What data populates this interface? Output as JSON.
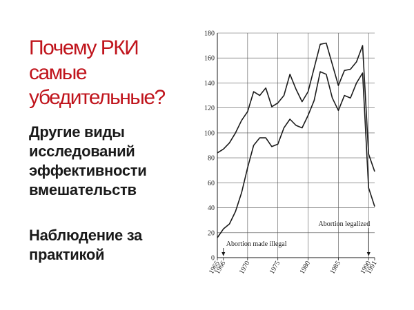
{
  "slide": {
    "title_lines": [
      "Почему РКИ",
      "самые",
      "убедительные?"
    ],
    "subtitle_lines": [
      "Другие виды",
      "исследований",
      "эффективности",
      "вмешательств"
    ],
    "subtitle2_lines": [
      "Наблюдение за",
      "практикой"
    ],
    "colors": {
      "title": "#c0141c",
      "text": "#1a1a1a",
      "line": "#1a1a1a"
    }
  },
  "chart_data": {
    "type": "line",
    "title": "",
    "xlabel": "",
    "ylabel": "",
    "xlim": [
      1965,
      1991
    ],
    "ylim": [
      0,
      180
    ],
    "grid": true,
    "x_tick_labels": [
      "1965",
      "1966",
      "1970",
      "1975",
      "1980",
      "1985",
      "1990",
      "1991"
    ],
    "x_tick_values": [
      1965,
      1966,
      1970,
      1975,
      1980,
      1985,
      1990,
      1991
    ],
    "y_tick_labels": [
      "0",
      "20",
      "40",
      "60",
      "80",
      "100",
      "120",
      "140",
      "160",
      "180"
    ],
    "y_tick_values": [
      0,
      20,
      40,
      60,
      80,
      100,
      120,
      140,
      160,
      180
    ],
    "series": [
      {
        "x": [
          1965,
          1966,
          1967,
          1968,
          1969,
          1970,
          1971,
          1972,
          1973,
          1974,
          1975,
          1976,
          1977,
          1978,
          1979,
          1980,
          1981,
          1982,
          1983,
          1984,
          1985,
          1986,
          1987,
          1988,
          1989,
          1990,
          1991
        ],
        "values": [
          84,
          87,
          92,
          100,
          110,
          117,
          133,
          130,
          136,
          121,
          124,
          130,
          147,
          135,
          125,
          133,
          152,
          171,
          172,
          155,
          138,
          150,
          151,
          157,
          170,
          83,
          69
        ]
      },
      {
        "x": [
          1965,
          1966,
          1967,
          1968,
          1969,
          1970,
          1971,
          1972,
          1973,
          1974,
          1975,
          1976,
          1977,
          1978,
          1979,
          1980,
          1981,
          1982,
          1983,
          1984,
          1985,
          1986,
          1987,
          1988,
          1989,
          1990,
          1991
        ],
        "values": [
          16,
          23,
          27,
          37,
          52,
          72,
          90,
          96,
          96,
          89,
          91,
          104,
          111,
          106,
          104,
          114,
          126,
          149,
          147,
          128,
          118,
          130,
          128,
          140,
          148,
          56,
          41
        ]
      }
    ],
    "annotations": [
      {
        "text": "Abortion made illegal",
        "x": 1966
      },
      {
        "text": "Abortion legalized",
        "x": 1990
      }
    ]
  }
}
